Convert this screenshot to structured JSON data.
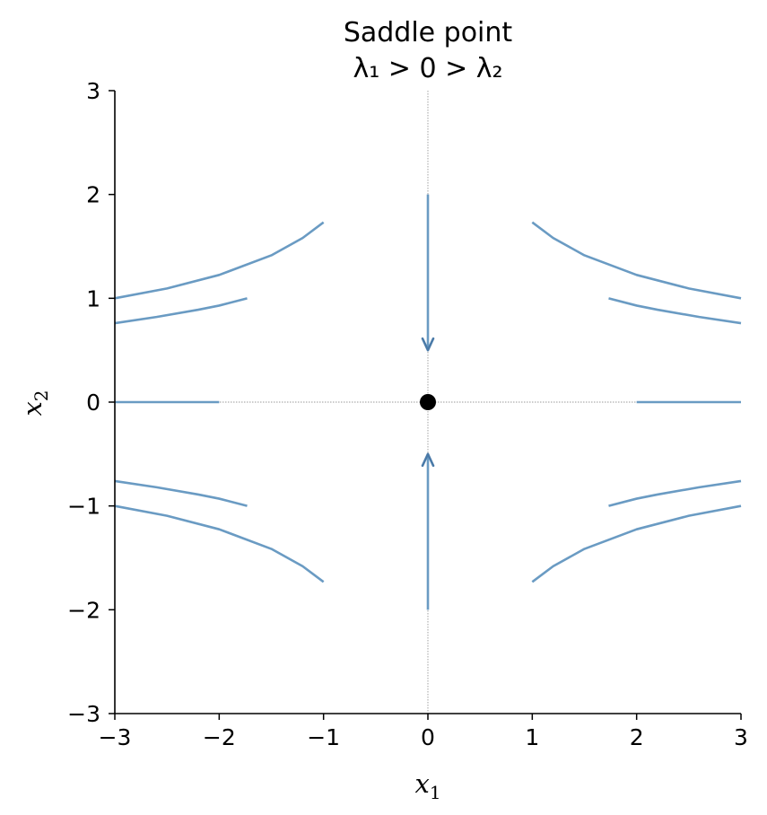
{
  "chart_data": {
    "type": "line",
    "title": "Saddle point",
    "subtitle": "λ₁ > 0 > λ₂",
    "xlabel": "x₁",
    "ylabel": "x₂",
    "xlim": [
      -3,
      3
    ],
    "ylim": [
      -3,
      3
    ],
    "xticks": [
      -3,
      -2,
      -1,
      0,
      1,
      2,
      3
    ],
    "yticks": [
      -3,
      -2,
      -1,
      0,
      1,
      2,
      3
    ],
    "grid": false,
    "spines": [
      "left",
      "bottom"
    ],
    "reference_lines": [
      {
        "orientation": "vertical",
        "value": 0
      },
      {
        "orientation": "horizontal",
        "value": 0
      }
    ],
    "colors": {
      "trajectory": "#6a9bc3",
      "arrow": "#4a7aa8",
      "equilibrium": "#000000",
      "reference": "#999999"
    },
    "equilibrium": {
      "x": 0,
      "y": 0
    },
    "trajectories": [
      {
        "points": [
          [
            -3,
            1.0
          ],
          [
            -2.5,
            1.095
          ],
          [
            -2.0,
            1.225
          ],
          [
            -1.5,
            1.414
          ],
          [
            -1.2,
            1.581
          ],
          [
            -1.0,
            1.732
          ]
        ]
      },
      {
        "points": [
          [
            -3,
            0.76
          ],
          [
            -2.6,
            0.82
          ],
          [
            -2.2,
            0.89
          ],
          [
            -2.0,
            0.93
          ],
          [
            -1.732,
            1.0
          ]
        ]
      },
      {
        "points": [
          [
            -3,
            -1.0
          ],
          [
            -2.5,
            -1.095
          ],
          [
            -2.0,
            -1.225
          ],
          [
            -1.5,
            -1.414
          ],
          [
            -1.2,
            -1.581
          ],
          [
            -1.0,
            -1.732
          ]
        ]
      },
      {
        "points": [
          [
            -3,
            -0.76
          ],
          [
            -2.6,
            -0.82
          ],
          [
            -2.2,
            -0.89
          ],
          [
            -2.0,
            -0.93
          ],
          [
            -1.732,
            -1.0
          ]
        ]
      },
      {
        "points": [
          [
            1.0,
            1.732
          ],
          [
            1.2,
            1.581
          ],
          [
            1.5,
            1.414
          ],
          [
            2.0,
            1.225
          ],
          [
            2.5,
            1.095
          ],
          [
            3,
            1.0
          ]
        ]
      },
      {
        "points": [
          [
            1.732,
            1.0
          ],
          [
            2.0,
            0.93
          ],
          [
            2.2,
            0.89
          ],
          [
            2.6,
            0.82
          ],
          [
            3,
            0.76
          ]
        ]
      },
      {
        "points": [
          [
            1.0,
            -1.732
          ],
          [
            1.2,
            -1.581
          ],
          [
            1.5,
            -1.414
          ],
          [
            2.0,
            -1.225
          ],
          [
            2.5,
            -1.095
          ],
          [
            3,
            -1.0
          ]
        ]
      },
      {
        "points": [
          [
            1.732,
            -1.0
          ],
          [
            2.0,
            -0.93
          ],
          [
            2.2,
            -0.89
          ],
          [
            2.6,
            -0.82
          ],
          [
            3,
            -0.76
          ]
        ]
      },
      {
        "points": [
          [
            -3,
            0
          ],
          [
            -2.0,
            0
          ]
        ]
      },
      {
        "points": [
          [
            2.0,
            0
          ],
          [
            3,
            0
          ]
        ]
      },
      {
        "points": [
          [
            0,
            2.0
          ],
          [
            0,
            0.5
          ]
        ]
      },
      {
        "points": [
          [
            0,
            -2.0
          ],
          [
            0,
            -0.5
          ]
        ]
      }
    ],
    "arrows": [
      {
        "x": 0,
        "y": 0.5,
        "direction": "down"
      },
      {
        "x": 0,
        "y": -0.5,
        "direction": "up"
      }
    ]
  }
}
